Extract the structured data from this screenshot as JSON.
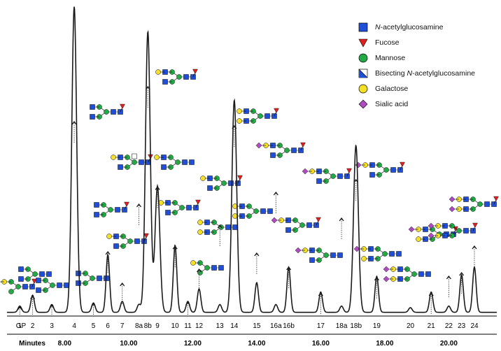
{
  "chart_data": {
    "type": "line",
    "xlabel": "Minutes",
    "ylabel": "",
    "gp_label": "GP",
    "xlim": [
      6.2,
      21.5
    ],
    "ylim": [
      0,
      100
    ],
    "grid": false,
    "legend_position": "top-right",
    "x_ticks": [
      {
        "x": 8.0,
        "label": "8.00"
      },
      {
        "x": 10.0,
        "label": "10.00"
      },
      {
        "x": 12.0,
        "label": "12.00"
      },
      {
        "x": 14.0,
        "label": "14.00"
      },
      {
        "x": 16.0,
        "label": "16.00"
      },
      {
        "x": 18.0,
        "label": "18.00"
      },
      {
        "x": 20.0,
        "label": "20.00"
      }
    ],
    "glycan_peaks": [
      {
        "label": "1",
        "x": 6.6,
        "y": 2.0
      },
      {
        "label": "2",
        "x": 7.0,
        "y": 5.5
      },
      {
        "label": "3",
        "x": 7.6,
        "y": 2.5
      },
      {
        "label": "4",
        "x": 8.3,
        "y": 98
      },
      {
        "label": "5",
        "x": 8.9,
        "y": 3.0
      },
      {
        "label": "6",
        "x": 9.35,
        "y": 18.5
      },
      {
        "label": "7",
        "x": 9.8,
        "y": 3.5
      },
      {
        "label": "8a",
        "x": 10.32,
        "y": 2.5
      },
      {
        "label": "8b",
        "x": 10.6,
        "y": 90
      },
      {
        "label": "9",
        "x": 10.9,
        "y": 40.5
      },
      {
        "label": "10",
        "x": 11.45,
        "y": 21.5
      },
      {
        "label": "11",
        "x": 11.85,
        "y": 3.5
      },
      {
        "label": "12",
        "x": 12.2,
        "y": 7.5
      },
      {
        "label": "13",
        "x": 12.85,
        "y": 2.5
      },
      {
        "label": "14",
        "x": 13.3,
        "y": 68
      },
      {
        "label": "15",
        "x": 14.0,
        "y": 9.5
      },
      {
        "label": "16a",
        "x": 14.6,
        "y": 2.5
      },
      {
        "label": "16b",
        "x": 15.0,
        "y": 14.5
      },
      {
        "label": "17",
        "x": 16.0,
        "y": 6.5
      },
      {
        "label": "18a",
        "x": 16.65,
        "y": 2.0
      },
      {
        "label": "18b",
        "x": 17.1,
        "y": 53.5
      },
      {
        "label": "19",
        "x": 17.75,
        "y": 11.5
      },
      {
        "label": "20",
        "x": 18.8,
        "y": 1.5
      },
      {
        "label": "21",
        "x": 19.45,
        "y": 6.5
      },
      {
        "label": "22",
        "x": 20.0,
        "y": 2.0
      },
      {
        "label": "23",
        "x": 20.4,
        "y": 12.0
      },
      {
        "label": "24",
        "x": 20.8,
        "y": 14.5
      }
    ]
  },
  "legend": [
    {
      "label": "N-acetylglucosamine",
      "shape": "square",
      "color": "#1f4ed8"
    },
    {
      "label": "Fucose",
      "shape": "triangle",
      "color": "#e02020"
    },
    {
      "label": "Mannose",
      "shape": "circle",
      "color": "#22aa44"
    },
    {
      "label": "Bisecting N-acetylglucosamine",
      "shape": "bisecting-square",
      "color": "#1f4ed8"
    },
    {
      "label": "Galactose",
      "shape": "circle",
      "color": "#f5e025"
    },
    {
      "label": "Sialic acid",
      "shape": "diamond",
      "color": "#b04ac0"
    }
  ],
  "colors": {
    "trace": "#1a1a1a",
    "annotation_arrow": "#111111",
    "guide_line": "#444444"
  },
  "glycan_structures": [
    {
      "peak": "1",
      "residues": [
        "sialic-acid",
        "galactose",
        "mannose",
        "mannose",
        "n-acetylglucosamine",
        "n-acetylglucosamine"
      ],
      "fucose": true
    },
    {
      "peak": "2",
      "residues": [
        "mannose",
        "mannose",
        "n-acetylglucosamine",
        "n-acetylglucosamine"
      ],
      "fucose": true
    },
    {
      "peak": "3",
      "residues": [
        "mannose",
        "mannose",
        "n-acetylglucosamine",
        "n-acetylglucosamine"
      ],
      "fucose": false
    },
    {
      "peak": "4",
      "residues": [
        "n-acetylglucosamine",
        "mannose",
        "mannose",
        "n-acetylglucosamine",
        "n-acetylglucosamine"
      ],
      "fucose": true
    },
    {
      "peak": "5",
      "residues": [
        "mannose",
        "mannose",
        "n-acetylglucosamine",
        "n-acetylglucosamine"
      ],
      "fucose": false
    },
    {
      "peak": "6",
      "residues": [
        "n-acetylglucosamine",
        "mannose",
        "mannose",
        "n-acetylglucosamine",
        "n-acetylglucosamine"
      ],
      "fucose": true
    },
    {
      "peak": "7",
      "residues": [
        "galactose",
        "n-acetylglucosamine",
        "mannose",
        "mannose",
        "n-acetylglucosamine",
        "n-acetylglucosamine"
      ],
      "fucose": true
    },
    {
      "peak": "8a",
      "residues": [
        "galactose",
        "n-acetylglucosamine",
        "mannose",
        "mannose",
        "n-acetylglucosamine",
        "n-acetylglucosamine"
      ],
      "fucose": true
    },
    {
      "peak": "8b",
      "residues": [
        "galactose",
        "n-acetylglucosamine",
        "mannose",
        "mannose",
        "n-acetylglucosamine",
        "n-acetylglucosamine"
      ],
      "fucose": true
    },
    {
      "peak": "9",
      "residues": [
        "galactose",
        "n-acetylglucosamine",
        "mannose",
        "mannose",
        "n-acetylglucosamine",
        "n-acetylglucosamine"
      ],
      "fucose": true
    },
    {
      "peak": "10",
      "residues": [
        "galactose",
        "n-acetylglucosamine",
        "mannose",
        "mannose",
        "n-acetylglucosamine",
        "n-acetylglucosamine"
      ],
      "fucose": true
    },
    {
      "peak": "11",
      "residues": [
        "galactose",
        "mannose",
        "mannose",
        "n-acetylglucosamine",
        "n-acetylglucosamine"
      ],
      "fucose": false
    },
    {
      "peak": "12",
      "residues": [
        "galactose",
        "mannose",
        "mannose",
        "n-acetylglucosamine",
        "n-acetylglucosamine"
      ],
      "fucose": true
    },
    {
      "peak": "13",
      "residues": [
        "galactose",
        "n-acetylglucosamine",
        "mannose",
        "mannose",
        "n-acetylglucosamine",
        "n-acetylglucosamine"
      ],
      "fucose": true
    },
    {
      "peak": "14",
      "residues": [
        "galactose",
        "n-acetylglucosamine",
        "mannose",
        "mannose",
        "n-acetylglucosamine",
        "n-acetylglucosamine"
      ],
      "fucose": true
    },
    {
      "peak": "15",
      "residues": [
        "galactose",
        "n-acetylglucosamine",
        "mannose",
        "mannose",
        "n-acetylglucosamine",
        "n-acetylglucosamine"
      ],
      "fucose": false
    },
    {
      "peak": "16a",
      "residues": [
        "sialic-acid",
        "galactose",
        "n-acetylglucosamine",
        "mannose",
        "mannose",
        "n-acetylglucosamine",
        "n-acetylglucosamine"
      ],
      "fucose": true
    },
    {
      "peak": "16b",
      "residues": [
        "sialic-acid",
        "galactose",
        "n-acetylglucosamine",
        "mannose",
        "mannose",
        "n-acetylglucosamine",
        "n-acetylglucosamine"
      ],
      "fucose": true
    },
    {
      "peak": "17",
      "residues": [
        "sialic-acid",
        "galactose",
        "n-acetylglucosamine",
        "mannose",
        "mannose",
        "n-acetylglucosamine",
        "n-acetylglucosamine"
      ],
      "fucose": true
    },
    {
      "peak": "18a",
      "residues": [
        "sialic-acid",
        "galactose",
        "n-acetylglucosamine",
        "mannose",
        "mannose",
        "n-acetylglucosamine",
        "n-acetylglucosamine"
      ],
      "fucose": true
    },
    {
      "peak": "18b",
      "residues": [
        "sialic-acid",
        "galactose",
        "n-acetylglucosamine",
        "mannose",
        "mannose",
        "n-acetylglucosamine",
        "n-acetylglucosamine"
      ],
      "fucose": true
    },
    {
      "peak": "19",
      "residues": [
        "sialic-acid",
        "galactose",
        "n-acetylglucosamine",
        "mannose",
        "mannose",
        "n-acetylglucosamine",
        "n-acetylglucosamine"
      ],
      "fucose": false
    },
    {
      "peak": "21",
      "residues": [
        "sialic-acid",
        "galactose",
        "n-acetylglucosamine",
        "mannose",
        "mannose",
        "n-acetylglucosamine",
        "n-acetylglucosamine"
      ],
      "fucose": false
    },
    {
      "peak": "22",
      "residues": [
        "sialic-acid",
        "galactose",
        "n-acetylglucosamine",
        "mannose",
        "mannose",
        "n-acetylglucosamine",
        "n-acetylglucosamine"
      ],
      "fucose": true
    },
    {
      "peak": "23",
      "residues": [
        "sialic-acid",
        "galactose",
        "n-acetylglucosamine",
        "mannose",
        "mannose",
        "n-acetylglucosamine",
        "n-acetylglucosamine"
      ],
      "fucose": true
    },
    {
      "peak": "24",
      "residues": [
        "sialic-acid",
        "galactose",
        "n-acetylglucosamine",
        "mannose",
        "mannose",
        "n-acetylglucosamine",
        "n-acetylglucosamine"
      ],
      "fucose": true
    }
  ]
}
